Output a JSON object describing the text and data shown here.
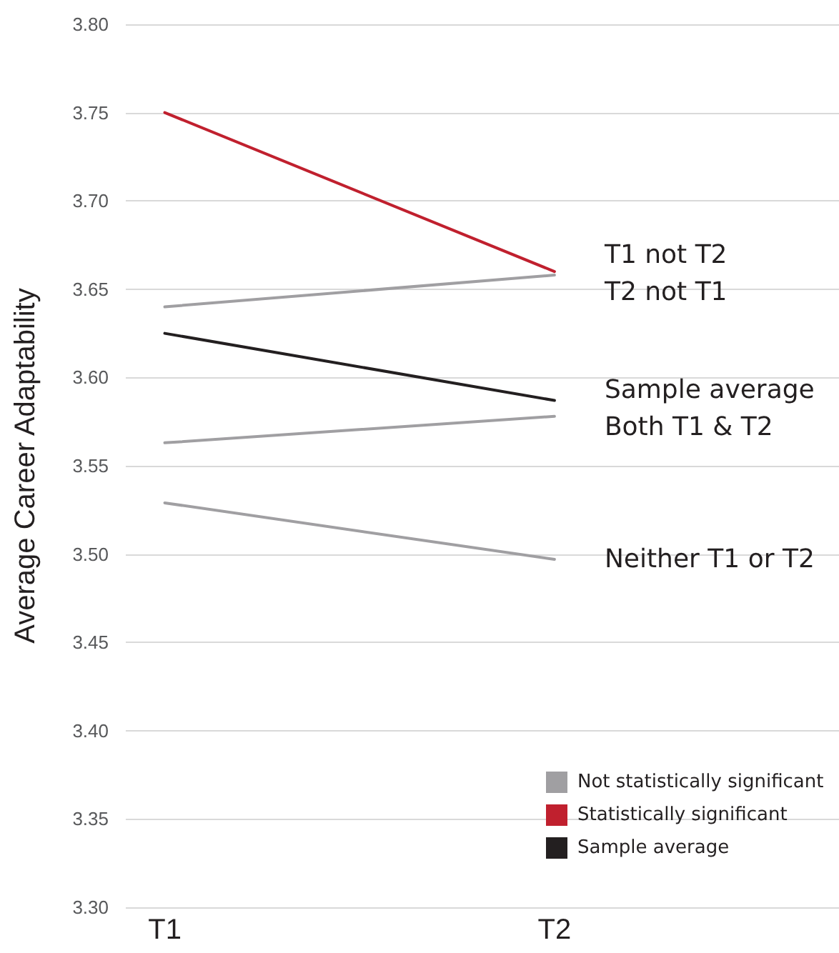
{
  "chart_data": {
    "type": "line",
    "ylabel": "Average Career Adaptability",
    "categories": [
      "T1",
      "T2"
    ],
    "series": [
      {
        "name": "T2 not T1",
        "color": "#a09fa2",
        "values": [
          3.64,
          3.658
        ]
      },
      {
        "name": "T1 not T2",
        "color": "#c0202e",
        "values": [
          3.75,
          3.66
        ]
      },
      {
        "name": "Sample average",
        "color": "#231f20",
        "values": [
          3.625,
          3.587
        ]
      },
      {
        "name": "Both T1 & T2",
        "color": "#a09fa2",
        "values": [
          3.563,
          3.578
        ]
      },
      {
        "name": "Neither T1 or T2",
        "color": "#a09fa2",
        "values": [
          3.529,
          3.497
        ]
      }
    ],
    "ylim": [
      3.3,
      3.8
    ],
    "yticks": [
      {
        "value": 3.3,
        "label": "3.30"
      },
      {
        "value": 3.35,
        "label": "3.35"
      },
      {
        "value": 3.4,
        "label": "3.40"
      },
      {
        "value": 3.45,
        "label": "3.45"
      },
      {
        "value": 3.5,
        "label": "3.50"
      },
      {
        "value": 3.55,
        "label": "3.55"
      },
      {
        "value": 3.6,
        "label": "3.60"
      },
      {
        "value": 3.65,
        "label": "3.65"
      },
      {
        "value": 3.7,
        "label": "3.70"
      },
      {
        "value": 3.75,
        "label": "3.75"
      },
      {
        "value": 3.8,
        "label": "3.80"
      }
    ],
    "grid": "y",
    "marker": "none",
    "line_style": "solid",
    "annotations": [
      "Not statistically significant",
      "Statistically significant",
      "Sample average"
    ]
  }
}
